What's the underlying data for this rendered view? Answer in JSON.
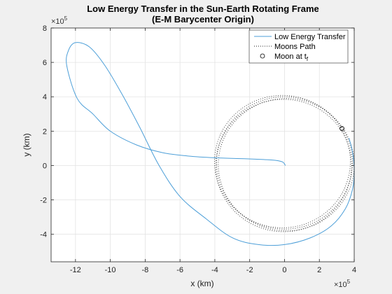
{
  "chart_data": {
    "type": "line",
    "title": "Low Energy Transfer in the Sun-Earth Rotating Frame",
    "subtitle": "(E-M Barycenter Origin)",
    "xlabel": "x (km)",
    "ylabel": "y (km)",
    "x_multiplier": {
      "base": "×10",
      "exp": "5"
    },
    "y_multiplier": {
      "base": "×10",
      "exp": "5"
    },
    "xlim": [
      -13.4,
      4.0
    ],
    "ylim": [
      -5.6,
      8.0
    ],
    "x_unit_scale": 100000,
    "xticks": [
      -12,
      -10,
      -8,
      -6,
      -4,
      -2,
      0,
      2,
      4
    ],
    "yticks": [
      -4,
      -2,
      0,
      2,
      4,
      6,
      8
    ],
    "grid": true,
    "legend_position": "top-right",
    "series": [
      {
        "name": "Low Energy Transfer",
        "style": "solid",
        "color": "#4d9fd8",
        "x": [
          0.05,
          -0.1,
          -0.5,
          -1.2,
          -2.5,
          -4.0,
          -5.5,
          -7.0,
          -8.5,
          -10.0,
          -11.0,
          -11.9,
          -12.5,
          -12.4,
          -12.0,
          -11.2,
          -10.3,
          -9.3,
          -8.3,
          -7.2,
          -6.0,
          -4.5,
          -3.0,
          -1.5,
          0.0,
          1.5,
          2.7,
          3.5,
          3.9,
          4.0,
          3.9,
          3.7
        ],
        "y": [
          0.0,
          0.2,
          0.3,
          0.35,
          0.4,
          0.45,
          0.55,
          0.75,
          1.2,
          2.0,
          3.0,
          3.9,
          5.8,
          6.7,
          7.15,
          6.9,
          5.8,
          4.1,
          2.2,
          0.0,
          -1.8,
          -3.1,
          -4.2,
          -4.6,
          -4.6,
          -4.2,
          -3.5,
          -2.5,
          -1.4,
          -0.3,
          0.8,
          1.6
        ]
      },
      {
        "name": "Moons Path",
        "style": "dotted",
        "color": "#222222",
        "center": [
          0,
          0.15
        ],
        "rx": 3.9,
        "ry": 3.85
      },
      {
        "name": "Moon at t",
        "name_sub": "f",
        "style": "marker",
        "color": "#000000",
        "x": [
          3.3
        ],
        "y": [
          2.15
        ]
      }
    ]
  }
}
